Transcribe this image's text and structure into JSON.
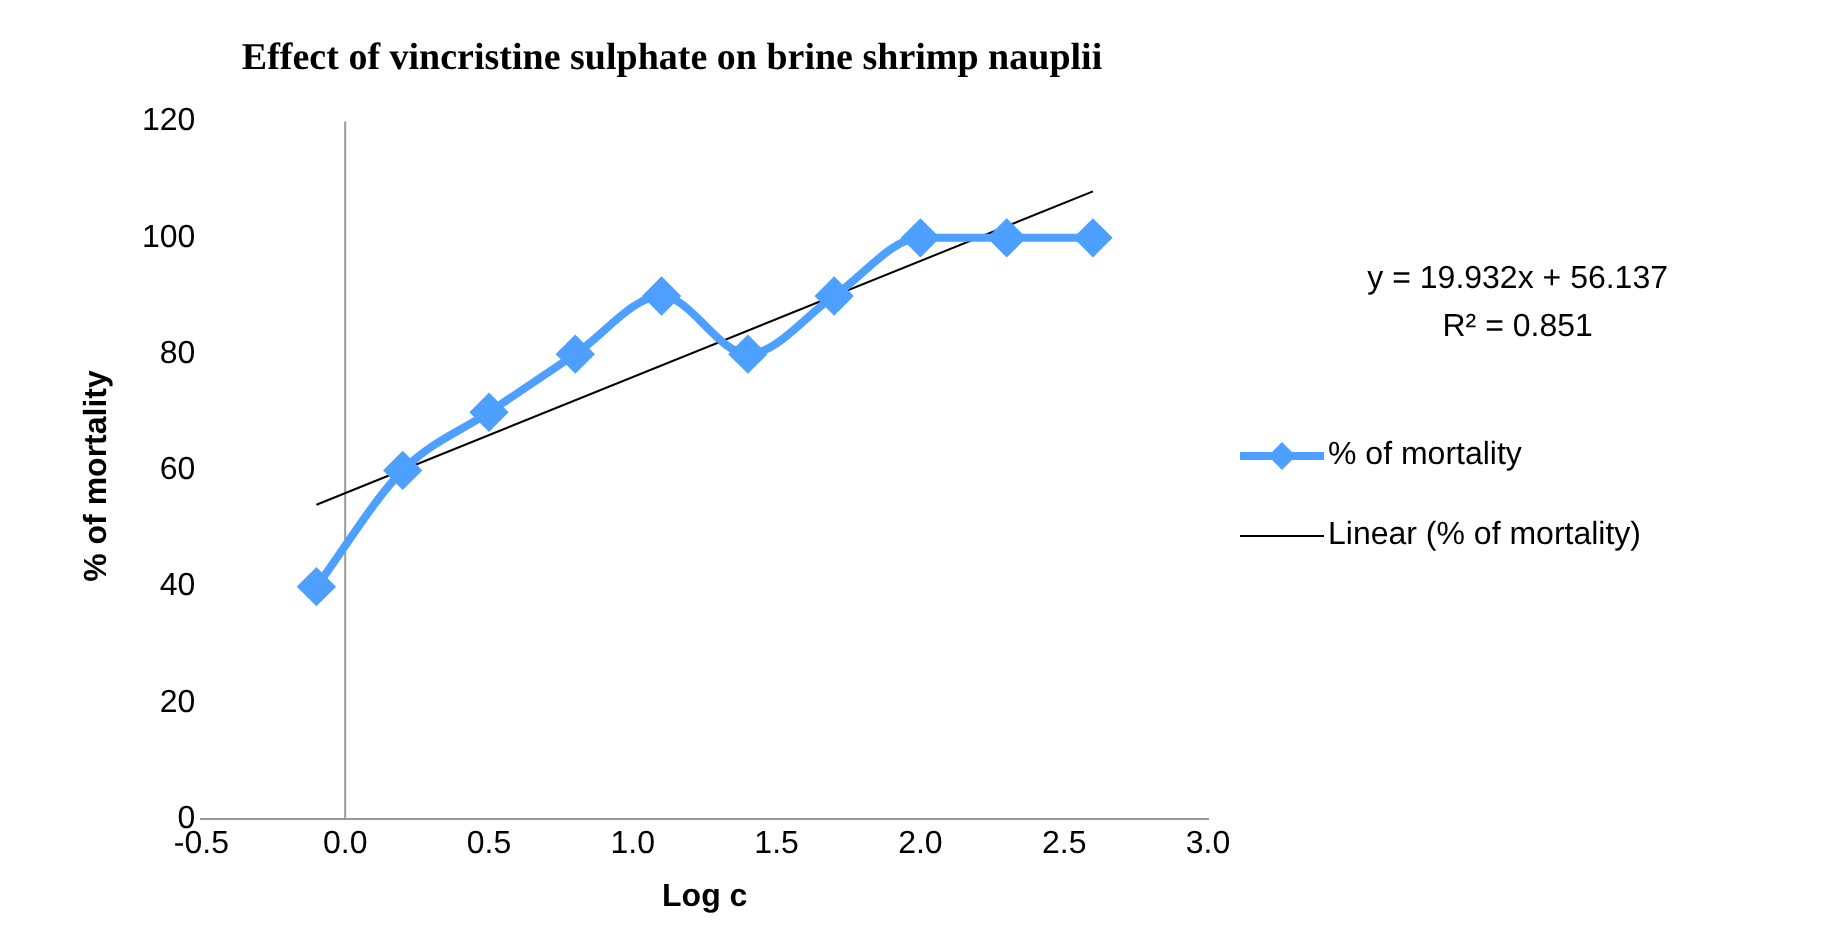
{
  "chart_data": {
    "type": "line",
    "title": "Effect of vincristine sulphate on brine shrimp nauplii",
    "xlabel": "Log c",
    "ylabel": "% of mortality",
    "annotations": [
      "y = 19.932x + 56.137",
      "R² = 0.851"
    ],
    "series": [
      {
        "name": "% of mortality",
        "color": "#4da0ff",
        "x": [
          -0.1,
          0.2,
          0.5,
          0.8,
          1.1,
          1.4,
          1.7,
          2.0,
          2.3,
          2.6
        ],
        "values": [
          40,
          60,
          70,
          80,
          90,
          80,
          90,
          100,
          100,
          100
        ],
        "marker": "diamond"
      },
      {
        "name": "Linear (% of mortality)",
        "type": "line",
        "color": "#000000",
        "x": [
          -0.1,
          2.6
        ],
        "values": [
          54.1,
          108.0
        ],
        "marker": "none"
      }
    ],
    "xlim": [
      -0.5,
      3.0
    ],
    "xticks": [
      {
        "value": -0.5,
        "label": "-0.5"
      },
      {
        "value": 0,
        "label": "0.0"
      },
      {
        "value": 0.5,
        "label": "0.5"
      },
      {
        "value": 1,
        "label": "1.0"
      },
      {
        "value": 1.5,
        "label": "1.5"
      },
      {
        "value": 2,
        "label": "2.0"
      },
      {
        "value": 2.5,
        "label": "2.5"
      },
      {
        "value": 3,
        "label": "3.0"
      }
    ],
    "ylim": [
      0,
      120
    ],
    "yticks": [
      0,
      20,
      40,
      60,
      80,
      100,
      120
    ],
    "ref_lines": [
      {
        "axis": "x",
        "value": 0,
        "color": "#999999"
      }
    ],
    "grid": false,
    "legend": "right"
  }
}
